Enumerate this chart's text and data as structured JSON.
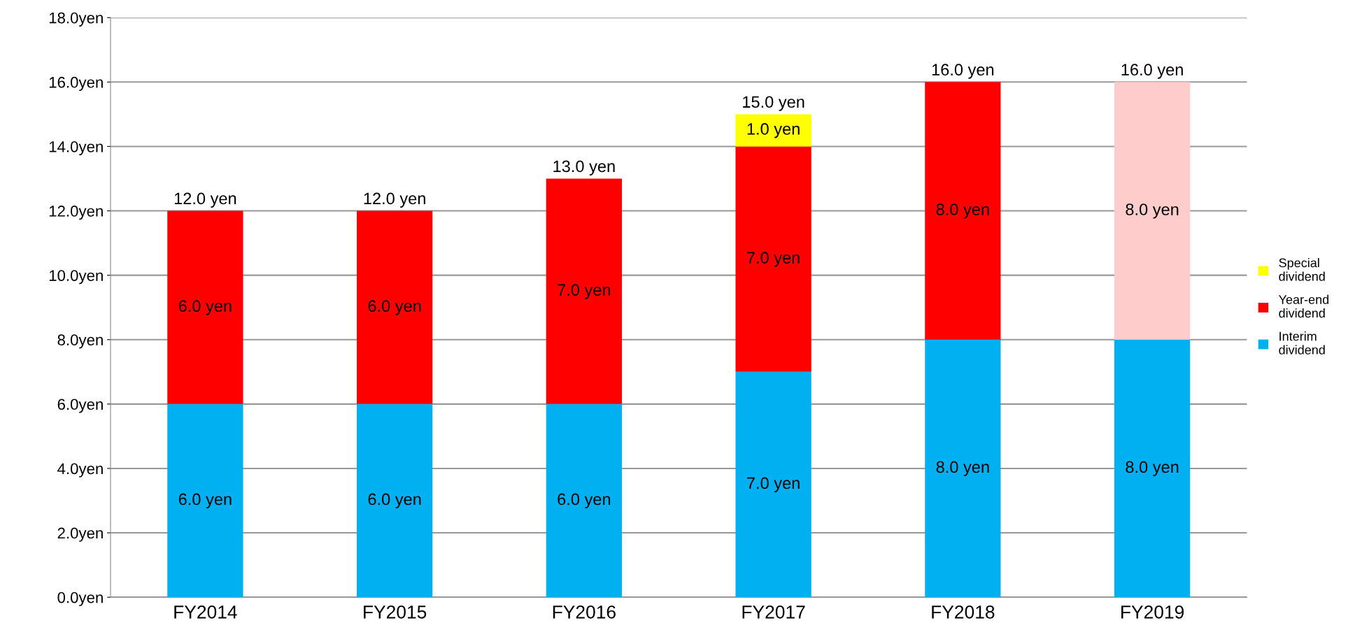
{
  "chart_data": {
    "type": "bar",
    "stacked": true,
    "categories": [
      "FY2014",
      "FY2015",
      "FY2016",
      "FY2017",
      "FY2018",
      "FY2019"
    ],
    "series": [
      {
        "name": "Interim dividend",
        "color": "#00b0f0",
        "values": [
          6,
          6,
          6,
          7,
          8,
          8
        ],
        "value_labels": [
          "6.0 yen",
          "6.0 yen",
          "6.0 yen",
          "7.0 yen",
          "8.0 yen",
          "8.0 yen"
        ]
      },
      {
        "name": "Year-end dividend",
        "color": "#ff0000",
        "colors": [
          "#ff0000",
          "#ff0000",
          "#ff0000",
          "#ff0000",
          "#ff0000",
          "#ffcccc"
        ],
        "values": [
          6,
          6,
          7,
          7,
          8,
          8
        ],
        "value_labels": [
          "6.0 yen",
          "6.0 yen",
          "7.0 yen",
          "7.0 yen",
          "8.0 yen",
          "8.0 yen"
        ]
      },
      {
        "name": "Special dividend",
        "color": "#ffff00",
        "values": [
          null,
          null,
          null,
          1,
          null,
          null
        ],
        "value_labels": [
          null,
          null,
          null,
          "1.0 yen",
          null,
          null
        ]
      }
    ],
    "totals": [
      "12.0 yen",
      "12.0 yen",
      "13.0 yen",
      "15.0 yen",
      "16.0 yen",
      "16.0 yen"
    ],
    "ylim": [
      0,
      18
    ],
    "yticks": [
      {
        "value": 0,
        "label": "0.0yen"
      },
      {
        "value": 2,
        "label": "2.0yen"
      },
      {
        "value": 4,
        "label": "4.0yen"
      },
      {
        "value": 6,
        "label": "6.0yen"
      },
      {
        "value": 8,
        "label": "8.0yen"
      },
      {
        "value": 10,
        "label": "10.0yen"
      },
      {
        "value": 12,
        "label": "12.0yen"
      },
      {
        "value": 14,
        "label": "14.0yen"
      },
      {
        "value": 16,
        "label": "16.0yen"
      },
      {
        "value": 18,
        "label": "18.0yen"
      }
    ],
    "grid": "y",
    "legend": "right"
  }
}
